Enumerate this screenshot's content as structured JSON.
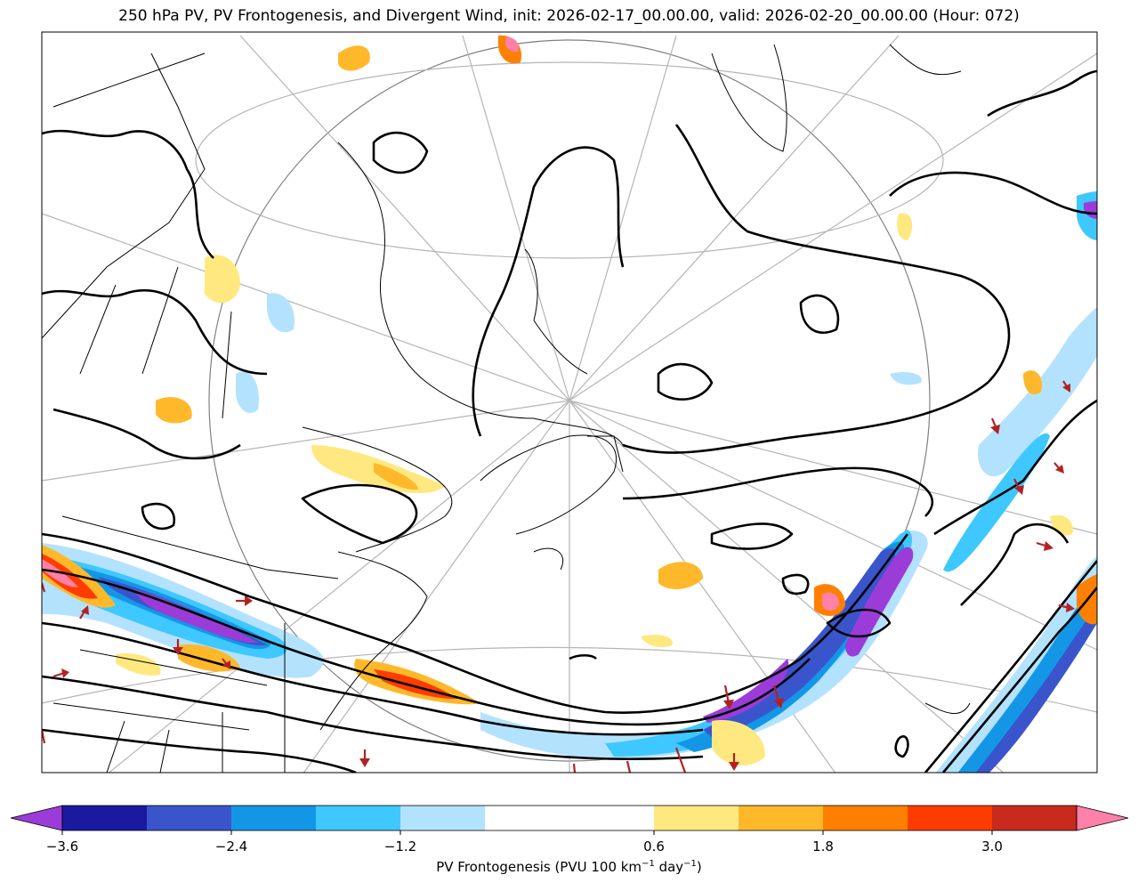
{
  "title": "250 hPa PV, PV Frontogenesis, and Divergent Wind, init: 2026-02-17_00.00.00, valid: 2026-02-20_00.00.00 (Hour: 072)",
  "colorbar": {
    "label_prefix": "PV Frontogenesis (PVU 100 km",
    "label_exp1": "−1",
    "label_mid": " day",
    "label_exp2": "−1",
    "label_suffix": ")",
    "ticks": [
      "−3.6",
      "−2.4",
      "−1.2",
      "0.6",
      "1.8",
      "3.0"
    ],
    "ticks_values": [
      -3.6,
      -2.4,
      -1.2,
      0.6,
      1.8,
      3.0
    ],
    "levels": [
      -3.6,
      -3.0,
      -2.4,
      -1.8,
      -1.2,
      -0.6,
      0.6,
      1.2,
      1.8,
      2.4,
      3.0,
      3.6
    ],
    "colors": [
      "#1a1aa0",
      "#3a55cc",
      "#1496e6",
      "#3ec8ff",
      "#b3e2ff",
      "#ffffff",
      "#ffe880",
      "#ffb82a",
      "#ff8000",
      "#ff3c00",
      "#c82a1e"
    ],
    "under_color": "#9c3cd8",
    "over_color": "#ff80a8"
  },
  "colors": {
    "pv_contour": "#000000",
    "coastline": "#000000",
    "graticule": "#b0b0b0",
    "wind_arrow": "#b22222",
    "purple_core": "#9c3cd8",
    "pink_core": "#ff80a8"
  }
}
